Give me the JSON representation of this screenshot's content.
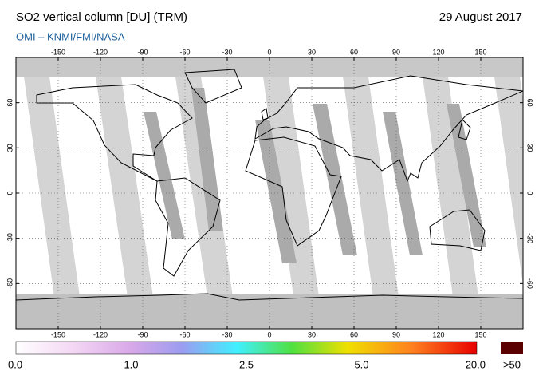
{
  "title": "SO2 vertical column [DU] (TRM)",
  "date": "29 August 2017",
  "subtitle": "OMI  –  KNMI/FMI/NASA",
  "lon_ticks": [
    -150,
    -120,
    -90,
    -60,
    -30,
    0,
    30,
    60,
    90,
    120,
    150
  ],
  "lat_ticks": [
    60,
    30,
    0,
    -30,
    -60
  ],
  "colorbar": {
    "ticks": [
      {
        "value": 0,
        "label": "0.0"
      },
      {
        "value": 1,
        "label": "1.0"
      },
      2.5,
      {
        "value": 5,
        "label": "5.0"
      },
      {
        "value": 20,
        "label": "20.0"
      }
    ],
    "overflow_label": ">50"
  }
}
